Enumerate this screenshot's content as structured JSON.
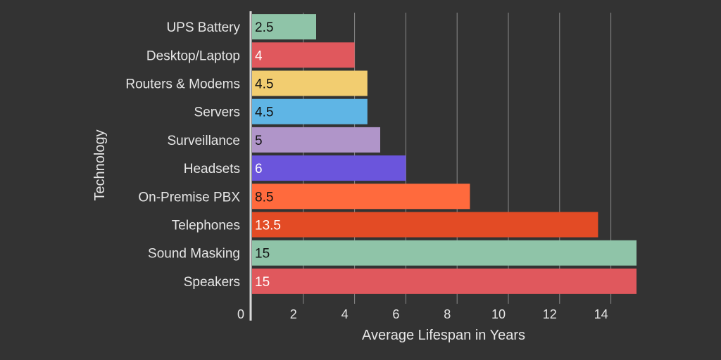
{
  "chart_data": {
    "type": "bar",
    "orientation": "horizontal",
    "categories": [
      "UPS Battery",
      "Desktop/Laptop",
      "Routers & Modems",
      "Servers",
      "Surveillance",
      "Headsets",
      "On-Premise PBX",
      "Telephones",
      "Sound Masking",
      "Speakers"
    ],
    "values": [
      2.5,
      4,
      4.5,
      4.5,
      5,
      6,
      8.5,
      13.5,
      15,
      15
    ],
    "value_labels": [
      "2.5",
      "4",
      "4.5",
      "4.5",
      "5",
      "6",
      "8.5",
      "13.5",
      "15",
      "15"
    ],
    "bar_colors": [
      "#8fc4a8",
      "#e0585d",
      "#f2cd70",
      "#5fb5e5",
      "#b095c9",
      "#6b55dc",
      "#ff6a3d",
      "#e34b25",
      "#8fc4a8",
      "#e0585d"
    ],
    "label_colors": [
      "#111111",
      "#ffffff",
      "#111111",
      "#111111",
      "#111111",
      "#ffffff",
      "#111111",
      "#ffffff",
      "#111111",
      "#ffffff"
    ],
    "xlabel": "Average Lifespan in Years",
    "ylabel": "Technology",
    "xlim": [
      0,
      15
    ],
    "xticks": [
      0,
      2,
      4,
      6,
      8,
      10,
      12,
      14
    ],
    "xtick_labels": [
      "0",
      "2",
      "4",
      "6",
      "8",
      "10",
      "12",
      "14"
    ],
    "grid": "vertical",
    "legend": "none"
  },
  "colors": {
    "background": "#333333",
    "text": "#e6e6e6",
    "gridline": "#8a8a8a",
    "axis_line": "#d9d9d9"
  }
}
